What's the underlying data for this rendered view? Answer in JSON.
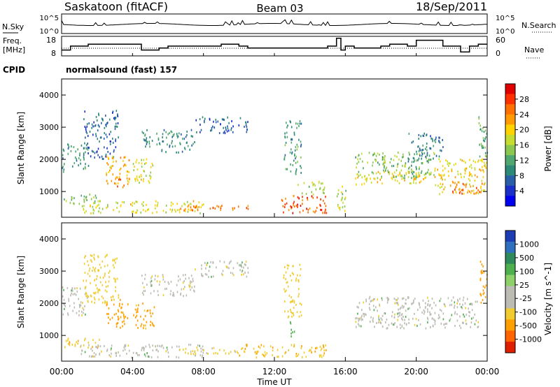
{
  "header": {
    "station": "Saskatoon (fitACF)",
    "beam": "Beam 03",
    "date": "18/Sep/2011"
  },
  "noise_panel": {
    "left_label": "N.Sky",
    "left_ticks": [
      "10^5",
      "10^0"
    ],
    "right_label": "N.Search",
    "right_ticks": [
      "10^5",
      "10^0"
    ]
  },
  "freq_panel": {
    "left_label_1": "Freq.",
    "left_label_2": "[MHz]",
    "left_ticks": [
      "18",
      "8"
    ],
    "right_label": "Nave",
    "right_ticks": [
      "60",
      "0"
    ]
  },
  "cpid": {
    "label": "CPID",
    "value": "normalsound (fast) 157"
  },
  "axes": {
    "ylabel": "Slant Range [km]",
    "yticks": [
      "4000",
      "3000",
      "2000",
      "1000"
    ],
    "xlabel": "Time UT",
    "xticks": [
      "00:00",
      "04:00",
      "08:00",
      "12:00",
      "16:00",
      "20:00",
      "00:00"
    ]
  },
  "power_colorbar": {
    "label": "Power [dB]",
    "ticks": [
      "28",
      "24",
      "20",
      "16",
      "12",
      "8",
      "4"
    ],
    "colors": [
      "#e00000",
      "#ff3000",
      "#ff7000",
      "#ff9a00",
      "#ffd200",
      "#c8dc30",
      "#8cc850",
      "#50a870",
      "#2e8a78",
      "#2a5fa8",
      "#1a30c8",
      "#0000f0"
    ]
  },
  "velocity_colorbar": {
    "label": "Velocity [m s^-1]",
    "ticks": [
      "1000",
      "500",
      "100",
      "25",
      "-25",
      "-100",
      "-500",
      "-1000"
    ],
    "colors": [
      "#1c3cb4",
      "#2f6fbf",
      "#2e8a5a",
      "#4fb04f",
      "#8ed06a",
      "#bcbcb4",
      "#bcbcb4",
      "#f0cc30",
      "#ffa000",
      "#ff6400",
      "#e01e00"
    ]
  },
  "chart_data": {
    "type": "heatmap",
    "title": "Saskatoon (fitACF) Beam 03 18/Sep/2011",
    "xlabel": "Time UT",
    "ylabel": "Slant Range [km]",
    "xlim_hours": [
      0,
      24
    ],
    "ylim_km": [
      200,
      4500
    ],
    "x_ticks": [
      "00:00",
      "04:00",
      "08:00",
      "12:00",
      "16:00",
      "20:00",
      "00:00"
    ],
    "y_ticks": [
      1000,
      2000,
      3000,
      4000
    ],
    "frequency_mhz": {
      "ylim": [
        8,
        18
      ],
      "steps": [
        {
          "t": 0.0,
          "f": 11
        },
        {
          "t": 0.5,
          "f": 13
        },
        {
          "t": 1.5,
          "f": 14
        },
        {
          "t": 4.0,
          "f": 14
        },
        {
          "t": 4.5,
          "f": 11
        },
        {
          "t": 5.5,
          "f": 12
        },
        {
          "t": 6.0,
          "f": 13
        },
        {
          "t": 9.0,
          "f": 14
        },
        {
          "t": 10.0,
          "f": 13
        },
        {
          "t": 10.5,
          "f": 12
        },
        {
          "t": 11.0,
          "f": 12
        },
        {
          "t": 14.5,
          "f": 12
        },
        {
          "t": 15.0,
          "f": 13
        },
        {
          "t": 15.5,
          "f": 17
        },
        {
          "t": 15.75,
          "f": 11
        },
        {
          "t": 16.0,
          "f": 13
        },
        {
          "t": 16.5,
          "f": 12
        },
        {
          "t": 17.0,
          "f": 12
        },
        {
          "t": 17.5,
          "f": 12
        },
        {
          "t": 18.0,
          "f": 13
        },
        {
          "t": 18.5,
          "f": 14
        },
        {
          "t": 19.0,
          "f": 14
        },
        {
          "t": 19.5,
          "f": 13
        },
        {
          "t": 20.0,
          "f": 16
        },
        {
          "t": 21.0,
          "f": 16
        },
        {
          "t": 21.5,
          "f": 13
        },
        {
          "t": 22.5,
          "f": 10
        },
        {
          "t": 23.0,
          "f": 13
        },
        {
          "t": 23.5,
          "f": 14
        },
        {
          "t": 24.0,
          "f": 14
        }
      ]
    },
    "power_panel": {
      "colorbar": "Power [dB]",
      "range_db": [
        0,
        32
      ],
      "regions": [
        {
          "t0": 0.0,
          "t1": 1.5,
          "r0": 1600,
          "r1": 2500,
          "value": 10
        },
        {
          "t0": 0.0,
          "t1": 2.2,
          "r0": 600,
          "r1": 900,
          "value": 14
        },
        {
          "t0": 1.2,
          "t1": 3.2,
          "r0": 2000,
          "r1": 3500,
          "value": 6
        },
        {
          "t0": 2.5,
          "t1": 3.8,
          "r0": 1200,
          "r1": 2100,
          "value": 22
        },
        {
          "t0": 3.0,
          "t1": 3.6,
          "r0": 1100,
          "r1": 1500,
          "value": 26
        },
        {
          "t0": 4.0,
          "t1": 5.2,
          "r0": 1200,
          "r1": 2000,
          "value": 18
        },
        {
          "t0": 1.0,
          "t1": 8.0,
          "r0": 300,
          "r1": 700,
          "value": 18
        },
        {
          "t0": 6.5,
          "t1": 10.5,
          "r0": 400,
          "r1": 600,
          "value": 26
        },
        {
          "t0": 4.5,
          "t1": 7.5,
          "r0": 2200,
          "r1": 2900,
          "value": 9
        },
        {
          "t0": 7.5,
          "t1": 10.5,
          "r0": 2800,
          "r1": 3300,
          "value": 6
        },
        {
          "t0": 12.3,
          "t1": 15.0,
          "r0": 300,
          "r1": 900,
          "value": 28
        },
        {
          "t0": 13.2,
          "t1": 14.8,
          "r0": 900,
          "r1": 1300,
          "value": 16
        },
        {
          "t0": 12.5,
          "t1": 13.5,
          "r0": 1500,
          "r1": 3200,
          "value": 10
        },
        {
          "t0": 15.5,
          "t1": 16.0,
          "r0": 300,
          "r1": 1400,
          "value": 16
        },
        {
          "t0": 16.5,
          "t1": 21.0,
          "r0": 1400,
          "r1": 2200,
          "value": 14
        },
        {
          "t0": 16.5,
          "t1": 21.0,
          "r0": 1200,
          "r1": 1600,
          "value": 20
        },
        {
          "t0": 19.5,
          "t1": 21.5,
          "r0": 1900,
          "r1": 2800,
          "value": 8
        },
        {
          "t0": 21.0,
          "t1": 24.0,
          "r0": 900,
          "r1": 2000,
          "value": 20
        },
        {
          "t0": 22.0,
          "t1": 23.8,
          "r0": 900,
          "r1": 1300,
          "value": 26
        },
        {
          "t0": 23.5,
          "t1": 24.0,
          "r0": 2000,
          "r1": 3300,
          "value": 12
        }
      ]
    },
    "velocity_panel": {
      "colorbar": "Velocity [m s^-1]",
      "range_ms": [
        -1000,
        1000
      ],
      "regions": [
        {
          "t0": 0.0,
          "t1": 1.5,
          "r0": 1600,
          "r1": 2500,
          "value": 0
        },
        {
          "t0": 0.0,
          "t1": 2.2,
          "r0": 600,
          "r1": 900,
          "value": -80
        },
        {
          "t0": 1.2,
          "t1": 3.2,
          "r0": 2000,
          "r1": 3500,
          "value": -60
        },
        {
          "t0": 2.5,
          "t1": 3.8,
          "r0": 1200,
          "r1": 2100,
          "value": -150
        },
        {
          "t0": 4.0,
          "t1": 5.2,
          "r0": 1200,
          "r1": 2000,
          "value": -120
        },
        {
          "t0": 1.0,
          "t1": 8.0,
          "r0": 300,
          "r1": 700,
          "value": 0
        },
        {
          "t0": 6.5,
          "t1": 10.5,
          "r0": 400,
          "r1": 600,
          "value": -40
        },
        {
          "t0": 4.5,
          "t1": 7.5,
          "r0": 2200,
          "r1": 2900,
          "value": 0
        },
        {
          "t0": 7.5,
          "t1": 10.5,
          "r0": 2800,
          "r1": 3300,
          "value": 0
        },
        {
          "t0": 10.0,
          "t1": 15.0,
          "r0": 300,
          "r1": 700,
          "value": -90
        },
        {
          "t0": 12.5,
          "t1": 13.5,
          "r0": 1500,
          "r1": 3200,
          "value": -60
        },
        {
          "t0": 12.8,
          "t1": 13.2,
          "r0": 900,
          "r1": 1400,
          "value": 60
        },
        {
          "t0": 16.5,
          "t1": 23.5,
          "r0": 1200,
          "r1": 2200,
          "value": 0
        },
        {
          "t0": 23.5,
          "t1": 24.0,
          "r0": 2000,
          "r1": 3300,
          "value": -200
        }
      ]
    }
  }
}
